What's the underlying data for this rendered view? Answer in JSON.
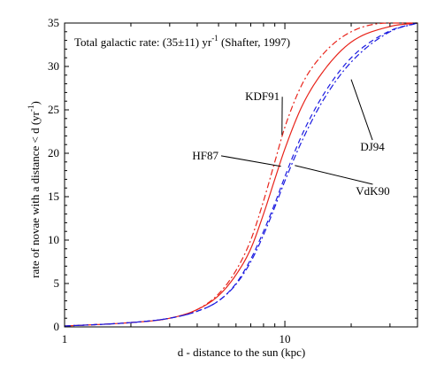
{
  "chart_data": {
    "type": "line",
    "title": "",
    "annotation": {
      "prefix": "Total galactic rate: (35±11) yr",
      "superscript": "-1",
      "suffix": " (Shafter, 1997)"
    },
    "xlabel": "d - distance to the sun (kpc)",
    "ylabel": {
      "main": "rate of novae with a distance < d  (yr",
      "superscript": "-1",
      "end": ")"
    },
    "x_scale": "log",
    "xlim": [
      1,
      40
    ],
    "ylim": [
      0,
      35
    ],
    "x_ticks": [
      1,
      10
    ],
    "x_tick_labels": [
      "1",
      "10"
    ],
    "y_ticks": [
      0,
      5,
      10,
      15,
      20,
      25,
      30,
      35
    ],
    "y_tick_labels": [
      "0",
      "5",
      "10",
      "15",
      "20",
      "25",
      "30",
      "35"
    ],
    "grid": false,
    "series": [
      {
        "name": "HF87",
        "color": "#e8231a",
        "dash": "solid",
        "x": [
          1,
          2,
          3,
          4,
          5,
          6,
          7,
          8,
          9,
          10,
          12,
          15,
          20,
          30,
          40
        ],
        "y": [
          0.1,
          0.5,
          1.0,
          2.0,
          3.6,
          6.0,
          9.0,
          13.0,
          17.0,
          20.5,
          25.5,
          29.5,
          32.8,
          34.6,
          35
        ]
      },
      {
        "name": "KDF91",
        "color": "#e8231a",
        "dash": "dashdot",
        "x": [
          1,
          2,
          3,
          4,
          5,
          6,
          7,
          8,
          9,
          10,
          12,
          15,
          20,
          30,
          40
        ],
        "y": [
          0.1,
          0.5,
          1.0,
          2.0,
          3.8,
          6.5,
          10.0,
          14.5,
          19.0,
          23.0,
          28.0,
          31.5,
          34.0,
          35,
          35
        ]
      },
      {
        "name": "VdK90",
        "color": "#1a1ae0",
        "dash": "dashdot",
        "x": [
          1,
          2,
          3,
          4,
          5,
          6,
          7,
          8,
          9,
          10,
          12,
          15,
          20,
          30,
          40
        ],
        "y": [
          0.1,
          0.5,
          1.0,
          1.8,
          3.0,
          4.9,
          7.5,
          10.6,
          13.8,
          16.8,
          21.5,
          26.2,
          30.5,
          34.0,
          35
        ]
      },
      {
        "name": "DJ94",
        "color": "#1a1ae0",
        "dash": "dashed",
        "x": [
          1,
          2,
          3,
          4,
          5,
          6,
          7,
          8,
          9,
          10,
          12,
          15,
          20,
          30,
          40
        ],
        "y": [
          0.1,
          0.5,
          1.0,
          1.8,
          3.0,
          5.0,
          7.8,
          11.0,
          14.2,
          17.3,
          22.2,
          26.8,
          31.0,
          34.1,
          35
        ]
      }
    ],
    "series_labels": [
      {
        "text": "KDF91",
        "x": 6.6,
        "y": 26.1,
        "lead_to": [
          9.7,
          22.1
        ]
      },
      {
        "text": "HF87",
        "x": 3.8,
        "y": 19.3,
        "lead_to": [
          9.6,
          18.5
        ]
      },
      {
        "text": "DJ94",
        "x": 22,
        "y": 20.3,
        "lead_to": [
          20,
          28.5
        ]
      },
      {
        "text": "VdK90",
        "x": 21,
        "y": 15.2,
        "lead_to": [
          11.1,
          18.6
        ]
      }
    ]
  }
}
